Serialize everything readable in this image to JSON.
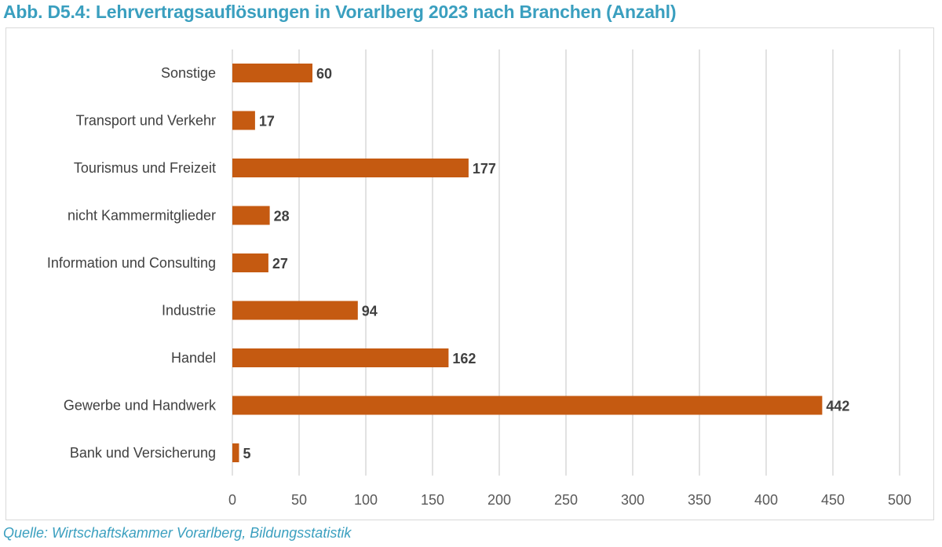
{
  "chart_data": {
    "type": "bar",
    "orientation": "horizontal",
    "title": "Abb. D5.4: Lehrvertragsauflösungen in Vorarlberg 2023 nach Branchen (Anzahl)",
    "source": "Quelle: Wirtschaftskammer Vorarlberg, Bildungsstatistik",
    "categories": [
      "Sonstige",
      "Transport und Verkehr",
      "Tourismus und Freizeit",
      "nicht Kammermitglieder",
      "Information und Consulting",
      "Industrie",
      "Handel",
      "Gewerbe und Handwerk",
      "Bank und Versicherung"
    ],
    "values": [
      60,
      17,
      177,
      28,
      27,
      94,
      162,
      442,
      5
    ],
    "xlabel": "",
    "ylabel": "",
    "xlim": [
      0,
      500
    ],
    "xticks": [
      0,
      50,
      100,
      150,
      200,
      250,
      300,
      350,
      400,
      450,
      500
    ],
    "grid": true,
    "legend": "none",
    "colors": {
      "bar": "#c55a11",
      "title": "#3a9fbf",
      "grid": "#d9d9d9"
    }
  }
}
